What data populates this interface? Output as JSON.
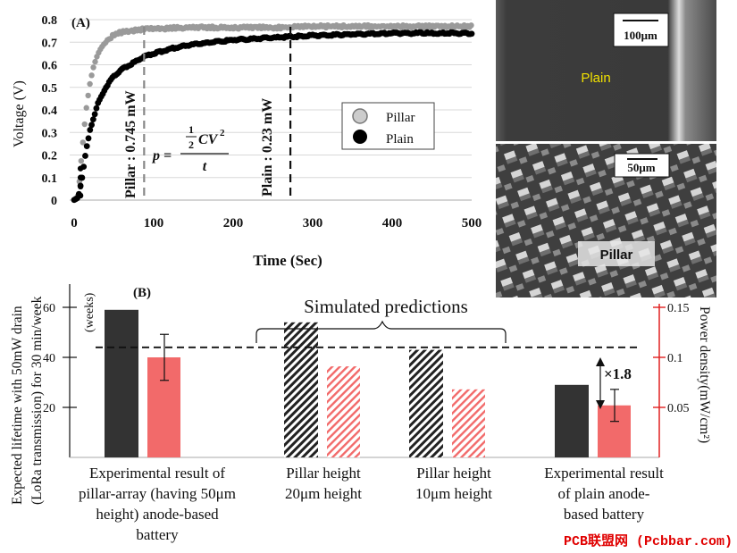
{
  "panel_a": {
    "label": "(A)",
    "ylabel": "Voltage (V)",
    "xlabel": "Time (Sec)",
    "x_ticks": [
      "0",
      "100",
      "200",
      "300",
      "400",
      "500"
    ],
    "y_ticks": [
      "0",
      "0.1",
      "0.2",
      "0.3",
      "0.4",
      "0.5",
      "0.6",
      "0.7",
      "0.8"
    ],
    "pillar_line_label": "Pillar : 0.745 mW",
    "plain_line_label": "Plain : 0.23 mW",
    "formula": {
      "lhs": "p =",
      "num": "1",
      "den": "2",
      "cv": "CV",
      "exp": "2",
      "t": "t"
    },
    "legend": {
      "pillar": "Pillar",
      "plain": "Plain"
    }
  },
  "panel_b": {
    "label": "(B)",
    "ylabel_line1": "Expected lifetime with 50mW drain",
    "ylabel_line2": "(LoRa transmission) for 30 min/week",
    "weeks_label": "(weeks)",
    "y_ticks": [
      "20",
      "40",
      "60"
    ],
    "right_ylabel": "Power density(mW/cm²)",
    "right_ticks": [
      "0.05",
      "0.1",
      "0.15"
    ],
    "sim_label": "Simulated predictions",
    "ratio_label": "×1.8",
    "groups": [
      {
        "label_lines": [
          "Experimental result of",
          "pillar-array (having 50μm",
          "height) anode-based",
          "battery"
        ]
      },
      {
        "label_lines": [
          "Pillar height",
          "20μm height"
        ]
      },
      {
        "label_lines": [
          "Pillar height",
          "10μm height"
        ]
      },
      {
        "label_lines": [
          "Experimental result",
          "of plain anode-",
          "based battery"
        ]
      }
    ]
  },
  "images": {
    "plain_label": "Plain",
    "plain_scale": "100μm",
    "pillar_label": "Pillar",
    "pillar_scale": "50μm"
  },
  "watermark": "PCB联盟网 (Pcbbar.com)",
  "colors": {
    "pillar_gray": "#999999",
    "plain_black": "#000000",
    "dark_bar": "#333333",
    "red_bar": "#f26a6a",
    "axis_red": "#e02020"
  },
  "chart_data": [
    {
      "type": "scatter",
      "title": "(A)",
      "xlabel": "Time (Sec)",
      "ylabel": "Voltage (V)",
      "xlim": [
        0,
        500
      ],
      "ylim": [
        0,
        0.8
      ],
      "legend": "center-right",
      "series": [
        {
          "name": "Pillar",
          "x": [
            0,
            5,
            10,
            15,
            20,
            25,
            30,
            35,
            40,
            45,
            50,
            60,
            70,
            80,
            90,
            100,
            150,
            200,
            250,
            300,
            350,
            400,
            450,
            500
          ],
          "y": [
            0,
            0.02,
            0.22,
            0.4,
            0.52,
            0.6,
            0.65,
            0.68,
            0.7,
            0.72,
            0.73,
            0.745,
            0.75,
            0.755,
            0.76,
            0.76,
            0.765,
            0.765,
            0.765,
            0.77,
            0.77,
            0.77,
            0.77,
            0.77
          ]
        },
        {
          "name": "Plain",
          "x": [
            0,
            5,
            10,
            15,
            20,
            30,
            40,
            50,
            60,
            70,
            80,
            90,
            100,
            120,
            150,
            200,
            250,
            300,
            350,
            400,
            450,
            500
          ],
          "y": [
            0,
            0.01,
            0.1,
            0.22,
            0.31,
            0.43,
            0.5,
            0.55,
            0.58,
            0.6,
            0.62,
            0.64,
            0.65,
            0.67,
            0.69,
            0.71,
            0.72,
            0.73,
            0.735,
            0.74,
            0.74,
            0.74
          ]
        }
      ],
      "annotations": [
        {
          "text": "Pillar : 0.745 mW",
          "x": 88
        },
        {
          "text": "Plain : 0.23 mW",
          "x": 272
        }
      ]
    },
    {
      "type": "bar",
      "title": "(B)",
      "categories": [
        "Experimental result of pillar-array (having 50μm height) anode-based battery",
        "Pillar height 20μm height",
        "Pillar height 10μm height",
        "Experimental result of plain anode-based battery"
      ],
      "ylabel": "Expected lifetime with 50mW drain (LoRa transmission) for 30 min/week (weeks)",
      "y2label": "Power density(mW/cm²)",
      "ylim": [
        0,
        70
      ],
      "y2lim": [
        0,
        0.15
      ],
      "reference_line": 44,
      "series": [
        {
          "name": "Expected lifetime",
          "axis": "left",
          "values": [
            59,
            54,
            43,
            29
          ],
          "errors": [
            0,
            0,
            0,
            0
          ]
        },
        {
          "name": "Power density",
          "axis": "right",
          "values": [
            0.1,
            0.091,
            0.068,
            0.052
          ],
          "errors": [
            0.023,
            0,
            0,
            0.016
          ]
        }
      ]
    }
  ]
}
